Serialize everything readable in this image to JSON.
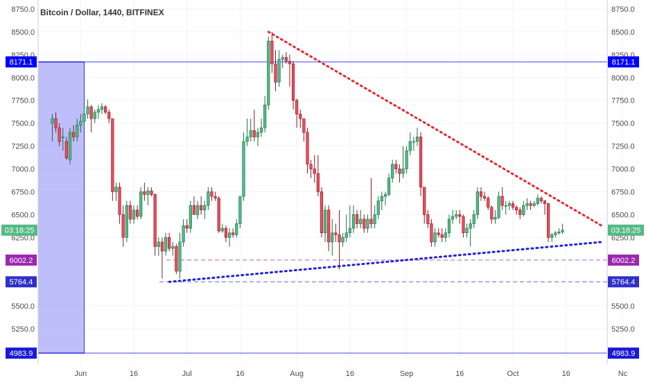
{
  "header": {
    "title": "Bitcoin / Dollar, 1440, BITFINEX"
  },
  "colors": {
    "up": "#53b987",
    "down": "#eb4d5c",
    "up_border": "#1a6e43",
    "down_border": "#8a1620",
    "resistance": "#e8252d",
    "support": "#1f1fe0",
    "zone": "#a8a8f8",
    "level_8171": "#0000ff",
    "level_6002": "#9c27b0",
    "level_5764": "#3030c8",
    "level_4983": "#1a1ad8",
    "time_badge": "#53b987",
    "grid": "#f0f3fa",
    "text": "#4a4a4a"
  },
  "chart_data": {
    "type": "candlestick",
    "title": "Bitcoin / Dollar, 1440, BITFINEX",
    "ylim": [
      5000,
      8800
    ],
    "y_ticks": [
      "8750.0",
      "8500.0",
      "8250.0",
      "8000.0",
      "7750.0",
      "7500.0",
      "7250.0",
      "7000.0",
      "6750.0",
      "6500.0",
      "6250.0",
      "5500.0",
      "5250.0"
    ],
    "x_ticks": [
      "Jun",
      "16",
      "Jul",
      "16",
      "Aug",
      "16",
      "Sep",
      "16",
      "Oct",
      "16",
      "Nc"
    ],
    "x_tick_dates": [
      "2018-06-01",
      "2018-06-16",
      "2018-07-01",
      "2018-07-16",
      "2018-08-01",
      "2018-08-16",
      "2018-09-01",
      "2018-09-16",
      "2018-10-01",
      "2018-10-16",
      "2018-11-01"
    ],
    "price_levels": [
      {
        "label": "8171.1",
        "value": 8171.1,
        "style": "solid",
        "color_key": "level_8171"
      },
      {
        "label": "6002.2",
        "value": 6002.2,
        "style": "dashed",
        "color_key": "level_6002"
      },
      {
        "label": "5764.4",
        "value": 5764.4,
        "style": "dashed",
        "color_key": "level_5764"
      },
      {
        "label": "4983.9",
        "value": 4983.9,
        "style": "solid",
        "color_key": "level_4983"
      }
    ],
    "current_time_label": "03:18:25",
    "current_price": 6330,
    "zone": {
      "start": "2018-05-23",
      "end": "2018-06-02",
      "top": 8171.1,
      "bottom": 4983.9
    },
    "trendlines": [
      {
        "name": "resistance",
        "from": [
          "2018-07-24",
          8500
        ],
        "to": [
          "2018-10-26",
          6380
        ]
      },
      {
        "name": "support",
        "from": [
          "2018-06-26",
          5764
        ],
        "to": [
          "2018-10-26",
          6200
        ]
      }
    ],
    "candles": [
      [
        "2018-05-24",
        7500,
        7600,
        7300,
        7550
      ],
      [
        "2018-05-25",
        7550,
        7620,
        7400,
        7450
      ],
      [
        "2018-05-26",
        7450,
        7500,
        7250,
        7300
      ],
      [
        "2018-05-27",
        7350,
        7450,
        7200,
        7350
      ],
      [
        "2018-05-28",
        7300,
        7350,
        7100,
        7120
      ],
      [
        "2018-05-29",
        7100,
        7450,
        7050,
        7400
      ],
      [
        "2018-05-30",
        7400,
        7480,
        7300,
        7350
      ],
      [
        "2018-05-31",
        7350,
        7550,
        7300,
        7480
      ],
      [
        "2018-06-01",
        7480,
        7600,
        7400,
        7520
      ],
      [
        "2018-06-02",
        7520,
        7650,
        7450,
        7600
      ],
      [
        "2018-06-03",
        7600,
        7760,
        7550,
        7680
      ],
      [
        "2018-06-04",
        7680,
        7700,
        7400,
        7550
      ],
      [
        "2018-06-05",
        7550,
        7650,
        7500,
        7620
      ],
      [
        "2018-06-06",
        7620,
        7700,
        7550,
        7650
      ],
      [
        "2018-06-07",
        7650,
        7720,
        7600,
        7680
      ],
      [
        "2018-06-08",
        7680,
        7700,
        7600,
        7620
      ],
      [
        "2018-06-09",
        7620,
        7650,
        7500,
        7550
      ],
      [
        "2018-06-10",
        7550,
        7550,
        6650,
        6750
      ],
      [
        "2018-06-11",
        6750,
        6850,
        6650,
        6800
      ],
      [
        "2018-06-12",
        6800,
        6850,
        6400,
        6500
      ],
      [
        "2018-06-13",
        6500,
        6600,
        6150,
        6250
      ],
      [
        "2018-06-14",
        6250,
        6650,
        6200,
        6600
      ],
      [
        "2018-06-15",
        6600,
        6650,
        6400,
        6450
      ],
      [
        "2018-06-16",
        6450,
        6600,
        6400,
        6550
      ],
      [
        "2018-06-17",
        6550,
        6600,
        6450,
        6480
      ],
      [
        "2018-06-18",
        6480,
        6800,
        6450,
        6750
      ],
      [
        "2018-06-19",
        6750,
        6850,
        6650,
        6720
      ],
      [
        "2018-06-20",
        6720,
        6800,
        6600,
        6760
      ],
      [
        "2018-06-21",
        6760,
        6800,
        6700,
        6720
      ],
      [
        "2018-06-22",
        6720,
        6730,
        6050,
        6150
      ],
      [
        "2018-06-23",
        6150,
        6250,
        6050,
        6200
      ],
      [
        "2018-06-24",
        6200,
        6250,
        5800,
        6100
      ],
      [
        "2018-06-25",
        6100,
        6300,
        6050,
        6250
      ],
      [
        "2018-06-26",
        6250,
        6300,
        6100,
        6130
      ],
      [
        "2018-06-27",
        6130,
        6200,
        6050,
        6150
      ],
      [
        "2018-06-28",
        6150,
        6180,
        5850,
        5880
      ],
      [
        "2018-06-29",
        5880,
        6300,
        5800,
        6200
      ],
      [
        "2018-06-30",
        6200,
        6450,
        6150,
        6380
      ],
      [
        "2018-07-01",
        6380,
        6450,
        6300,
        6350
      ],
      [
        "2018-07-02",
        6350,
        6650,
        6300,
        6600
      ],
      [
        "2018-07-03",
        6600,
        6700,
        6500,
        6500
      ],
      [
        "2018-07-04",
        6500,
        6650,
        6450,
        6600
      ],
      [
        "2018-07-05",
        6600,
        6700,
        6500,
        6550
      ],
      [
        "2018-07-06",
        6550,
        6650,
        6450,
        6600
      ],
      [
        "2018-07-07",
        6600,
        6800,
        6550,
        6750
      ],
      [
        "2018-07-08",
        6750,
        6800,
        6650,
        6700
      ],
      [
        "2018-07-09",
        6700,
        6750,
        6650,
        6680
      ],
      [
        "2018-07-10",
        6680,
        6700,
        6300,
        6320
      ],
      [
        "2018-07-11",
        6320,
        6400,
        6300,
        6350
      ],
      [
        "2018-07-12",
        6350,
        6380,
        6200,
        6250
      ],
      [
        "2018-07-13",
        6250,
        6350,
        6150,
        6300
      ],
      [
        "2018-07-14",
        6300,
        6350,
        6250,
        6280
      ],
      [
        "2018-07-15",
        6280,
        6450,
        6250,
        6400
      ],
      [
        "2018-07-16",
        6400,
        6700,
        6350,
        6700
      ],
      [
        "2018-07-17",
        6700,
        7400,
        6650,
        7300
      ],
      [
        "2018-07-18",
        7300,
        7550,
        7250,
        7350
      ],
      [
        "2018-07-19",
        7350,
        7550,
        7300,
        7420
      ],
      [
        "2018-07-20",
        7420,
        7650,
        7300,
        7350
      ],
      [
        "2018-07-21",
        7350,
        7450,
        7250,
        7400
      ],
      [
        "2018-07-22",
        7400,
        7550,
        7350,
        7450
      ],
      [
        "2018-07-23",
        7450,
        7800,
        7400,
        7700
      ],
      [
        "2018-07-24",
        7700,
        8450,
        7650,
        8400
      ],
      [
        "2018-07-25",
        8400,
        8500,
        8050,
        8150
      ],
      [
        "2018-07-26",
        8150,
        8300,
        7850,
        7950
      ],
      [
        "2018-07-27",
        7950,
        8300,
        7900,
        8200
      ],
      [
        "2018-07-28",
        8200,
        8250,
        8100,
        8220
      ],
      [
        "2018-07-29",
        8220,
        8280,
        8150,
        8180
      ],
      [
        "2018-07-30",
        8180,
        8250,
        7900,
        8150
      ],
      [
        "2018-07-31",
        8150,
        8180,
        7650,
        7750
      ],
      [
        "2018-08-01",
        7750,
        7770,
        7450,
        7600
      ],
      [
        "2018-08-02",
        7600,
        7650,
        7450,
        7550
      ],
      [
        "2018-08-03",
        7550,
        7550,
        7300,
        7400
      ],
      [
        "2018-08-04",
        7400,
        7450,
        6950,
        7050
      ],
      [
        "2018-08-05",
        7050,
        7100,
        6900,
        7000
      ],
      [
        "2018-08-06",
        7000,
        7150,
        6850,
        6950
      ],
      [
        "2018-08-07",
        6950,
        7150,
        6700,
        6750
      ],
      [
        "2018-08-08",
        6750,
        6800,
        6250,
        6300
      ],
      [
        "2018-08-09",
        6300,
        6600,
        6200,
        6550
      ],
      [
        "2018-08-10",
        6550,
        6600,
        6100,
        6200
      ],
      [
        "2018-08-11",
        6200,
        6450,
        6050,
        6300
      ],
      [
        "2018-08-12",
        6300,
        6400,
        6200,
        6280
      ],
      [
        "2018-08-13",
        6280,
        6550,
        5900,
        6200
      ],
      [
        "2018-08-14",
        6200,
        6300,
        6150,
        6250
      ],
      [
        "2018-08-15",
        6250,
        6500,
        6200,
        6300
      ],
      [
        "2018-08-16",
        6300,
        6600,
        6250,
        6350
      ],
      [
        "2018-08-17",
        6350,
        6600,
        6300,
        6500
      ],
      [
        "2018-08-18",
        6500,
        6550,
        6350,
        6400
      ],
      [
        "2018-08-19",
        6400,
        6550,
        6350,
        6450
      ],
      [
        "2018-08-20",
        6450,
        6500,
        6300,
        6350
      ],
      [
        "2018-08-21",
        6350,
        6500,
        6300,
        6450
      ],
      [
        "2018-08-22",
        6450,
        6900,
        6350,
        6400
      ],
      [
        "2018-08-23",
        6400,
        6600,
        6350,
        6500
      ],
      [
        "2018-08-24",
        6500,
        6700,
        6450,
        6650
      ],
      [
        "2018-08-25",
        6650,
        6750,
        6550,
        6700
      ],
      [
        "2018-08-26",
        6700,
        6750,
        6600,
        6720
      ],
      [
        "2018-08-27",
        6720,
        6950,
        6700,
        6900
      ],
      [
        "2018-08-28",
        6900,
        7100,
        6850,
        7050
      ],
      [
        "2018-08-29",
        7050,
        7100,
        6950,
        7000
      ],
      [
        "2018-08-30",
        7000,
        7050,
        6850,
        6950
      ],
      [
        "2018-08-31",
        6950,
        7250,
        6900,
        7000
      ],
      [
        "2018-09-01",
        7000,
        7250,
        6950,
        7200
      ],
      [
        "2018-09-02",
        7200,
        7400,
        7150,
        7300
      ],
      [
        "2018-09-03",
        7300,
        7350,
        7200,
        7300
      ],
      [
        "2018-09-04",
        7300,
        7450,
        7250,
        7350
      ],
      [
        "2018-09-05",
        7350,
        7400,
        6700,
        6800
      ],
      [
        "2018-09-06",
        6800,
        6800,
        6400,
        6500
      ],
      [
        "2018-09-07",
        6500,
        6550,
        6350,
        6400
      ],
      [
        "2018-09-08",
        6400,
        6450,
        6150,
        6200
      ],
      [
        "2018-09-09",
        6200,
        6350,
        6150,
        6300
      ],
      [
        "2018-09-10",
        6300,
        6350,
        6250,
        6280
      ],
      [
        "2018-09-11",
        6280,
        6350,
        6200,
        6250
      ],
      [
        "2018-09-12",
        6250,
        6350,
        6200,
        6300
      ],
      [
        "2018-09-13",
        6300,
        6500,
        6250,
        6450
      ],
      [
        "2018-09-14",
        6450,
        6550,
        6400,
        6480
      ],
      [
        "2018-09-15",
        6480,
        6550,
        6450,
        6500
      ],
      [
        "2018-09-16",
        6500,
        6550,
        6400,
        6480
      ],
      [
        "2018-09-17",
        6480,
        6500,
        6250,
        6300
      ],
      [
        "2018-09-18",
        6300,
        6400,
        6250,
        6350
      ],
      [
        "2018-09-19",
        6350,
        6450,
        6150,
        6400
      ],
      [
        "2018-09-20",
        6400,
        6550,
        6350,
        6500
      ],
      [
        "2018-09-21",
        6500,
        6800,
        6450,
        6750
      ],
      [
        "2018-09-22",
        6750,
        6800,
        6650,
        6700
      ],
      [
        "2018-09-23",
        6700,
        6750,
        6650,
        6680
      ],
      [
        "2018-09-24",
        6680,
        6700,
        6550,
        6580
      ],
      [
        "2018-09-25",
        6580,
        6600,
        6400,
        6450
      ],
      [
        "2018-09-26",
        6450,
        6550,
        6400,
        6470
      ],
      [
        "2018-09-27",
        6470,
        6750,
        6450,
        6700
      ],
      [
        "2018-09-28",
        6700,
        6800,
        6550,
        6600
      ],
      [
        "2018-09-29",
        6600,
        6650,
        6500,
        6600
      ],
      [
        "2018-09-30",
        6600,
        6650,
        6550,
        6620
      ],
      [
        "2018-10-01",
        6620,
        6650,
        6550,
        6580
      ],
      [
        "2018-10-02",
        6580,
        6600,
        6500,
        6550
      ],
      [
        "2018-10-03",
        6550,
        6580,
        6450,
        6500
      ],
      [
        "2018-10-04",
        6500,
        6650,
        6480,
        6600
      ],
      [
        "2018-10-05",
        6600,
        6680,
        6550,
        6620
      ],
      [
        "2018-10-06",
        6620,
        6650,
        6550,
        6600
      ],
      [
        "2018-10-07",
        6600,
        6650,
        6580,
        6620
      ],
      [
        "2018-10-08",
        6620,
        6720,
        6600,
        6680
      ],
      [
        "2018-10-09",
        6680,
        6700,
        6620,
        6650
      ],
      [
        "2018-10-10",
        6650,
        6660,
        6500,
        6620
      ],
      [
        "2018-10-11",
        6620,
        6630,
        6200,
        6250
      ],
      [
        "2018-10-12",
        6250,
        6300,
        6200,
        6280
      ],
      [
        "2018-10-13",
        6280,
        6320,
        6250,
        6300
      ],
      [
        "2018-10-14",
        6300,
        6350,
        6280,
        6310
      ],
      [
        "2018-10-15",
        6310,
        6400,
        6290,
        6330
      ]
    ]
  }
}
